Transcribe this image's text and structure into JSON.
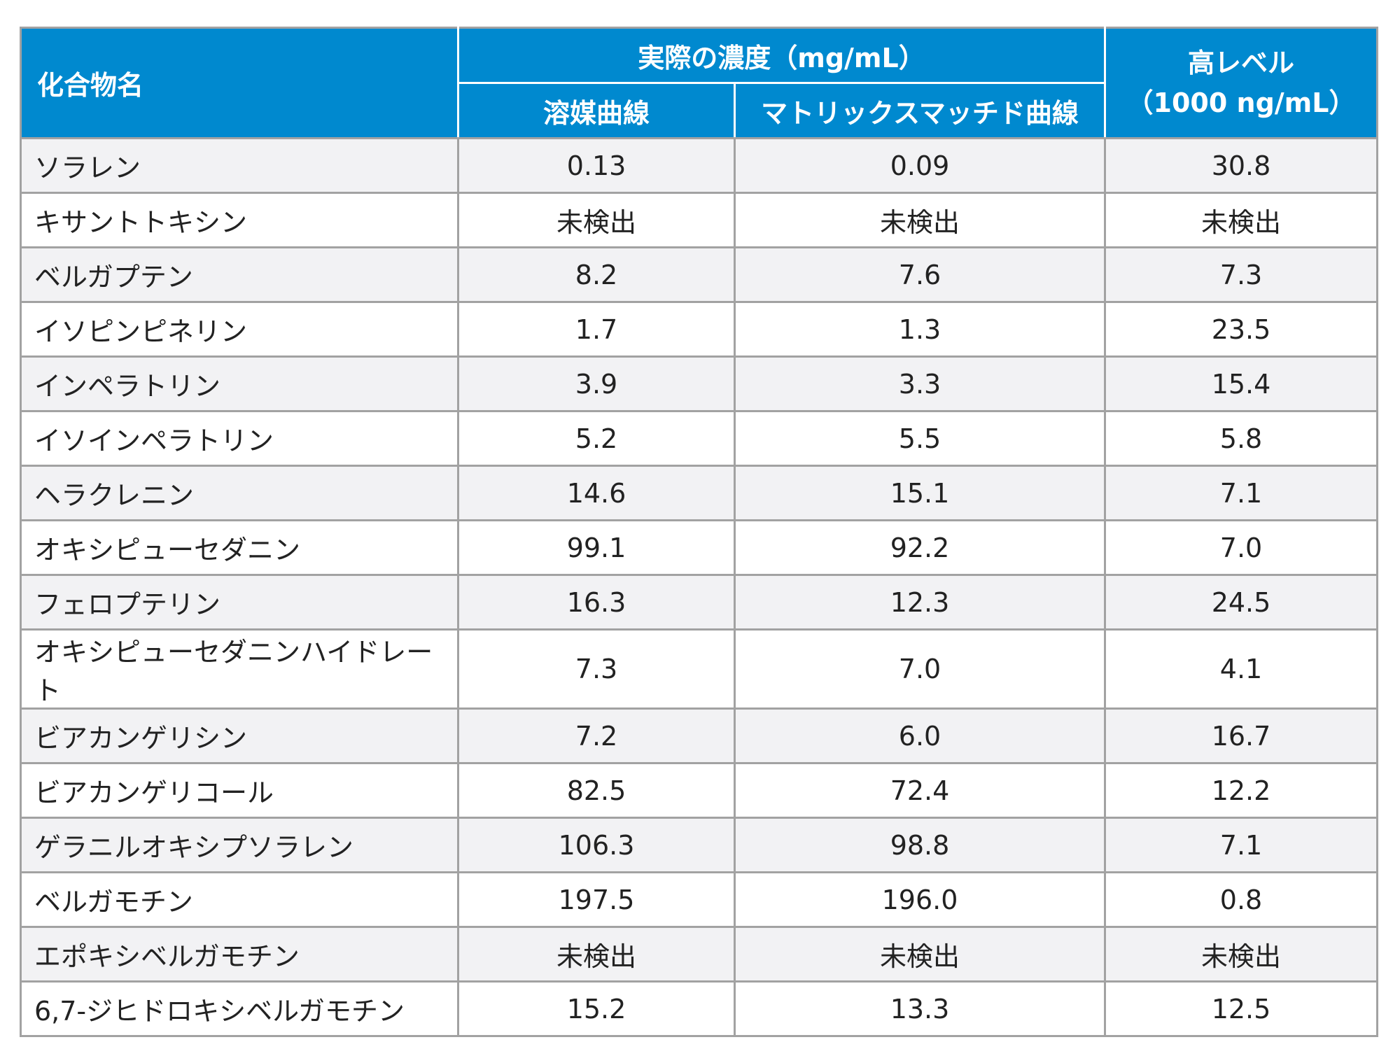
{
  "header": {
    "compound_name": "化合物名",
    "actual_concentration": "実際の濃度（mg/mL）",
    "solvent_curve": "溶媒曲線",
    "matrix_matched_curve": "マトリックスマッチド曲線",
    "high_level_line1": "高レベル",
    "high_level_line2": "（1000 ng/mL）"
  },
  "rows": [
    {
      "name": "ソラレン",
      "solvent": "0.13",
      "matrix": "0.09",
      "high": "30.8"
    },
    {
      "name": "キサントトキシン",
      "solvent": "未検出",
      "matrix": "未検出",
      "high": "未検出"
    },
    {
      "name": "ベルガプテン",
      "solvent": "8.2",
      "matrix": "7.6",
      "high": "7.3"
    },
    {
      "name": "イソピンピネリン",
      "solvent": "1.7",
      "matrix": "1.3",
      "high": "23.5"
    },
    {
      "name": "インペラトリン",
      "solvent": "3.9",
      "matrix": "3.3",
      "high": "15.4"
    },
    {
      "name": "イソインペラトリン",
      "solvent": "5.2",
      "matrix": "5.5",
      "high": "5.8"
    },
    {
      "name": "ヘラクレニン",
      "solvent": "14.6",
      "matrix": "15.1",
      "high": "7.1"
    },
    {
      "name": "オキシピューセダニン",
      "solvent": "99.1",
      "matrix": "92.2",
      "high": "7.0"
    },
    {
      "name": "フェロプテリン",
      "solvent": "16.3",
      "matrix": "12.3",
      "high": "24.5"
    },
    {
      "name": "オキシピューセダニンハイドレート",
      "solvent": "7.3",
      "matrix": "7.0",
      "high": "4.1"
    },
    {
      "name": "ビアカンゲリシン",
      "solvent": "7.2",
      "matrix": "6.0",
      "high": "16.7"
    },
    {
      "name": "ビアカンゲリコール",
      "solvent": "82.5",
      "matrix": "72.4",
      "high": "12.2"
    },
    {
      "name": "ゲラニルオキシプソラレン",
      "solvent": "106.3",
      "matrix": "98.8",
      "high": "7.1"
    },
    {
      "name": "ベルガモチン",
      "solvent": "197.5",
      "matrix": "196.0",
      "high": "0.8"
    },
    {
      "name": "エポキシベルガモチン",
      "solvent": "未検出",
      "matrix": "未検出",
      "high": "未検出"
    },
    {
      "name": "6,7-ジヒドロキシベルガモチン",
      "solvent": "15.2",
      "matrix": "13.3",
      "high": "12.5"
    }
  ]
}
